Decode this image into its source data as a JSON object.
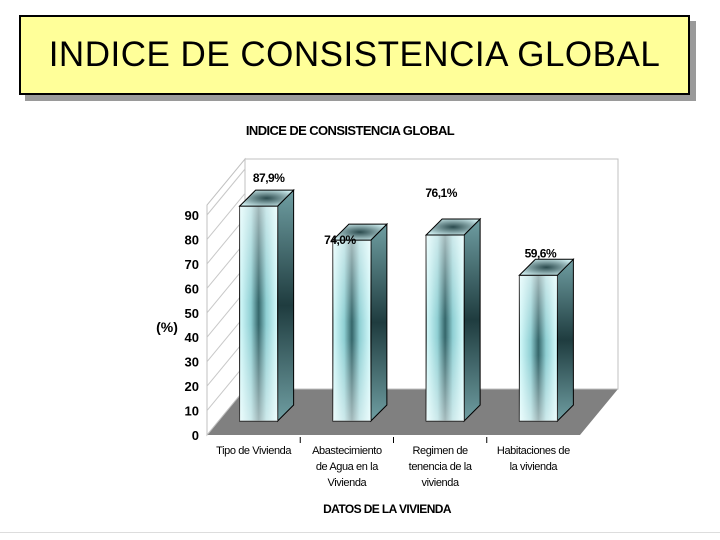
{
  "slide": {
    "title": "INDICE DE CONSISTENCIA GLOBAL"
  },
  "chart_data": {
    "type": "bar",
    "title": "INDICE DE CONSISTENCIA GLOBAL",
    "xlabel": "DATOS DE LA VIVIENDA",
    "ylabel": "(%)",
    "ylim": [
      0,
      90
    ],
    "yticks": [
      0,
      10,
      20,
      30,
      40,
      50,
      60,
      70,
      80,
      90
    ],
    "categories": [
      [
        "Tipo de Vivienda"
      ],
      [
        "Abastecimiento",
        "de Agua en la",
        "Vivienda"
      ],
      [
        "Regimen de",
        "tenencia de la",
        "vivienda"
      ],
      [
        "Habitaciones de",
        "la vivienda"
      ]
    ],
    "values": [
      87.9,
      74.0,
      76.1,
      59.6
    ],
    "data_labels": [
      "87,9%",
      "74,0%",
      "76,1%",
      "59,6%"
    ],
    "grid": true,
    "legend": "none",
    "colors": {
      "bar": "#c8f6f8",
      "bar_dark": "#2f5f63",
      "floor": "#808080"
    }
  }
}
